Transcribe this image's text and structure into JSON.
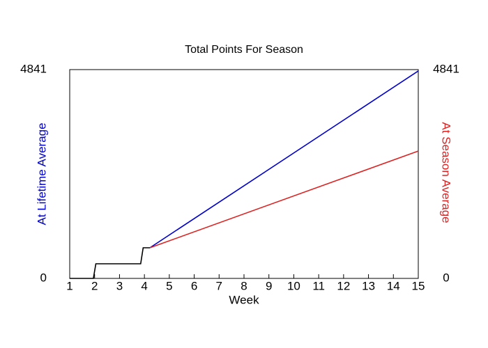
{
  "chart_data": {
    "type": "line",
    "title": "Total Points For Season",
    "xlabel": "Week",
    "ylabel": "At Lifetime Average",
    "y2label": "At Season Average",
    "xlim": [
      1,
      15
    ],
    "xticks": [
      1,
      2,
      3,
      4,
      5,
      6,
      7,
      8,
      9,
      10,
      11,
      12,
      13,
      14,
      15
    ],
    "ylim": [
      0,
      4841
    ],
    "yticks": [
      0,
      4841
    ],
    "y2lim": [
      0,
      4841
    ],
    "y2ticks": [
      0,
      4841
    ],
    "series": [
      {
        "color": "#000000",
        "x": [
          1,
          1.95,
          2.05,
          3.85,
          3.95,
          4.22
        ],
        "values": [
          0,
          0,
          339,
          339,
          710,
          710
        ]
      },
      {
        "color": "#0000cc",
        "x": [
          4.22,
          15
        ],
        "values": [
          710,
          4810
        ]
      },
      {
        "color": "#dd2222",
        "axis": "y2",
        "x": [
          4.22,
          15
        ],
        "values": [
          710,
          2953
        ]
      }
    ]
  }
}
